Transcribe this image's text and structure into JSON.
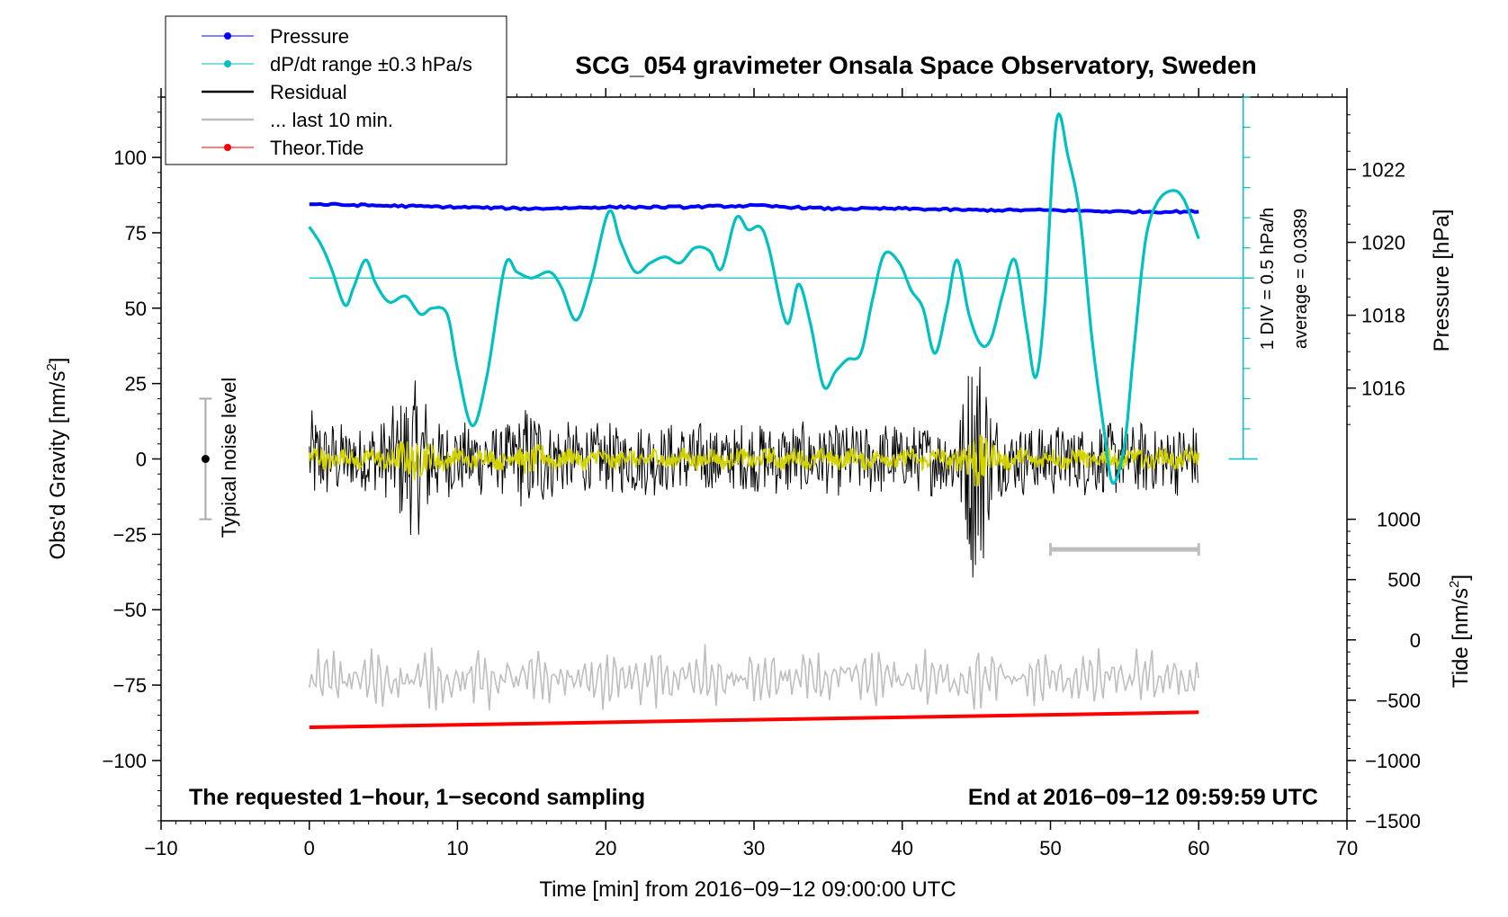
{
  "chart_data": {
    "type": "line",
    "title": "SCG_054 gravimeter Onsala Space Observatory, Sweden",
    "xlabel": "Time [min] from 2016−09−12 09:00:00 UTC",
    "ylabel_left_prefix": "Obs'd Gravity [nm/s",
    "ylabel_sup": "2",
    "ylabel_left_suffix": "]",
    "ylabel_right_pressure": "Pressure [hPa]",
    "ylabel_right_tide_prefix": "Tide [nm/s",
    "ylabel_right_tide_suffix": "]",
    "xlim": [
      -10,
      70
    ],
    "ylim_left": [
      -120,
      120
    ],
    "x_ticks": [
      -10,
      0,
      10,
      20,
      30,
      40,
      50,
      60,
      70
    ],
    "x_tick_labels": [
      "−10",
      "0",
      "10",
      "20",
      "30",
      "40",
      "50",
      "60",
      "70"
    ],
    "y_ticks_left": [
      100,
      75,
      50,
      25,
      0,
      -25,
      -50,
      -75,
      -100
    ],
    "y_tick_labels_left": [
      "100",
      "75",
      "50",
      "25",
      "0",
      "−25",
      "−50",
      "−75",
      "−100"
    ],
    "pressure_ticks": [
      1022,
      1020,
      1018,
      1016
    ],
    "pressure_tick_labels": [
      "1022",
      "1020",
      "1018",
      "1016"
    ],
    "pressure_axis_gravity_equiv": [
      [
        1022,
        96
      ],
      [
        1016,
        23.5
      ]
    ],
    "tide_ticks": [
      1000,
      500,
      0,
      -500,
      -1000,
      -1500
    ],
    "tide_tick_labels": [
      "1000",
      "500",
      "0",
      "−500",
      "−1000",
      "−1500"
    ],
    "tide_axis_gravity_equiv": [
      [
        1000,
        -20
      ],
      [
        -1500,
        -120
      ]
    ],
    "dpdt_scale_label_1": "1 DIV = 0.5 hPa/h",
    "dpdt_scale_label_2": "average = 0.0389",
    "dpdt_scale_range_gravity": [
      0,
      120
    ],
    "dpdt_average_line_gravity": 60,
    "noise_label": "Typical noise level",
    "noise_bar": {
      "x": -7,
      "center": 0,
      "half_range": 20
    },
    "last10_bar": {
      "x0": 50,
      "x1": 60,
      "y": -30
    },
    "footer_left": "The requested 1−hour, 1−second sampling",
    "footer_right": "End at 2016−09−12 09:59:59 UTC",
    "legend": [
      {
        "label": "Pressure",
        "color": "#0000ff",
        "marker": true
      },
      {
        "label": "dP/dt range ±0.3 hPa/s",
        "color": "#00c0c0",
        "marker": true
      },
      {
        "label": "Residual",
        "color": "#000000",
        "marker": false
      },
      {
        "label": "... last 10 min.",
        "color": "#bebebe",
        "marker": false
      },
      {
        "label": "Theor.Tide",
        "color": "#ff0000",
        "marker": true
      }
    ],
    "series": [
      {
        "name": "Pressure",
        "color": "#0000ff",
        "x": [
          0,
          5,
          10,
          15,
          20,
          25,
          30,
          35,
          40,
          45,
          50,
          55,
          60
        ],
        "y": [
          84.5,
          84,
          83.5,
          83,
          83.5,
          83.5,
          84,
          83,
          83,
          82.5,
          82.5,
          82,
          82
        ]
      },
      {
        "name": "dP/dt",
        "color": "#00c0c0",
        "x": [
          0,
          0.8,
          1.5,
          2.4,
          3.0,
          3.8,
          4.5,
          5.4,
          6.5,
          7.5,
          8.3,
          9.3,
          10.0,
          11.0,
          12.0,
          13.2,
          14.0,
          15.0,
          16.2,
          17.0,
          18.0,
          19.0,
          20.2,
          21.0,
          22.0,
          23.0,
          24.0,
          25.0,
          26.0,
          27.0,
          27.8,
          28.8,
          29.6,
          30.4,
          31.0,
          32.2,
          33.0,
          33.8,
          34.7,
          35.5,
          36.3,
          37.2,
          38.0,
          38.8,
          39.8,
          40.6,
          41.4,
          42.2,
          43.0,
          43.7,
          44.5,
          45.3,
          46.0,
          46.8,
          47.6,
          48.4,
          49.0,
          49.6,
          50.4,
          51.2,
          52.0,
          52.8,
          53.6,
          54.2,
          55.0,
          55.6,
          56.4,
          57.2,
          58.2,
          59.0,
          60.0
        ],
        "y": [
          77,
          71,
          63,
          51,
          57,
          66,
          58,
          52,
          54,
          48,
          50,
          48,
          30,
          11,
          28,
          64,
          62,
          60,
          62,
          57,
          46,
          59,
          82,
          72,
          62,
          65,
          67,
          65,
          70,
          69,
          63,
          80,
          76,
          77,
          70,
          45,
          58,
          45,
          24,
          29,
          33,
          35,
          53,
          68,
          65,
          56,
          50,
          35,
          50,
          66,
          48,
          38,
          40,
          55,
          66,
          43,
          27,
          50,
          112,
          100,
          80,
          40,
          10,
          -8,
          5,
          35,
          72,
          85,
          89,
          86,
          73
        ]
      },
      {
        "name": "Theor.Tide",
        "color": "#ff0000",
        "x": [
          0,
          60
        ],
        "y": [
          -89,
          -84
        ]
      }
    ]
  }
}
